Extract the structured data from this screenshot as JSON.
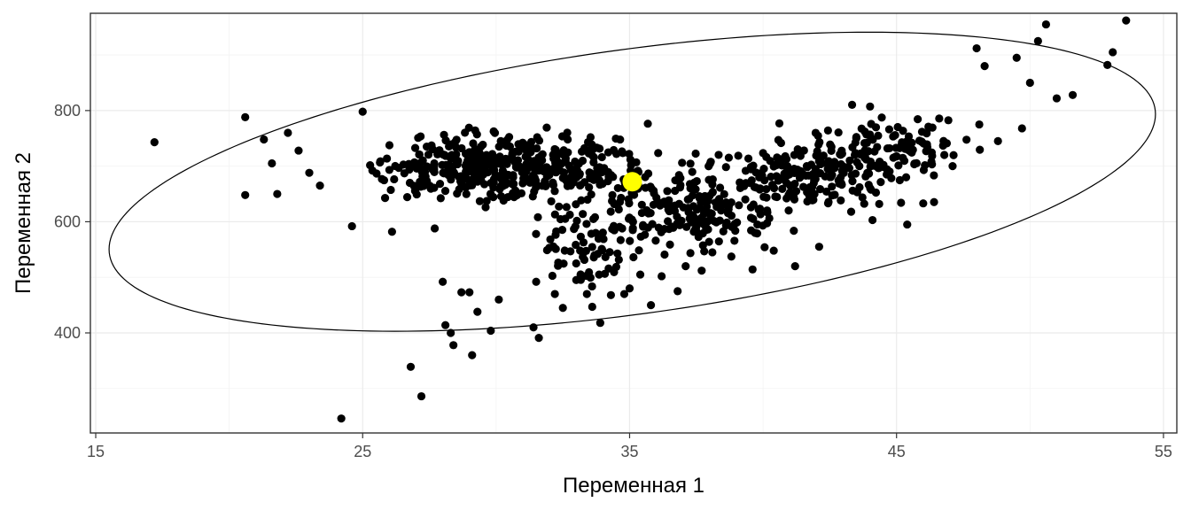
{
  "chart_data": {
    "type": "scatter",
    "title": "",
    "xlabel": "Переменная 1",
    "ylabel": "Переменная 2",
    "xlim": [
      14.8,
      55.5
    ],
    "ylim": [
      220,
      975
    ],
    "x_ticks": [
      15,
      25,
      35,
      45,
      55
    ],
    "y_ticks": [
      400,
      600,
      800
    ],
    "grid": true,
    "legend": "none",
    "colors": {
      "points": "#000000",
      "centroid": "#ffff00",
      "ellipse": "#000000",
      "panel_border": "#333333",
      "grid": "#ebebeb"
    },
    "centroid": {
      "x": 35.1,
      "y": 672
    },
    "ellipse": {
      "center_x": 35.1,
      "center_y": 672,
      "semi_major": 19.6,
      "semi_minor_y": 240,
      "tilt_slope": 6.2
    },
    "points": [
      [
        17.2,
        743
      ],
      [
        20.6,
        788
      ],
      [
        20.6,
        648
      ],
      [
        21.3,
        748
      ],
      [
        21.6,
        705
      ],
      [
        21.8,
        650
      ],
      [
        22.2,
        760
      ],
      [
        22.6,
        728
      ],
      [
        23.0,
        688
      ],
      [
        23.4,
        665
      ],
      [
        24.2,
        246
      ],
      [
        24.6,
        592
      ],
      [
        25.0,
        798
      ],
      [
        26.1,
        582
      ],
      [
        26.8,
        339
      ],
      [
        27.2,
        286
      ],
      [
        27.7,
        588
      ],
      [
        28.0,
        492
      ],
      [
        28.1,
        414
      ],
      [
        28.3,
        400
      ],
      [
        28.4,
        378
      ],
      [
        28.7,
        473
      ],
      [
        29.0,
        473
      ],
      [
        29.1,
        360
      ],
      [
        29.3,
        438
      ],
      [
        29.8,
        404
      ],
      [
        30.1,
        460
      ],
      [
        31.4,
        410
      ],
      [
        31.6,
        391
      ],
      [
        31.5,
        492
      ],
      [
        32.2,
        470
      ],
      [
        32.5,
        445
      ],
      [
        33.0,
        525
      ],
      [
        33.4,
        470
      ],
      [
        33.6,
        447
      ],
      [
        33.9,
        418
      ],
      [
        34.3,
        468
      ],
      [
        34.8,
        470
      ],
      [
        35.0,
        480
      ],
      [
        35.4,
        505
      ],
      [
        35.8,
        450
      ],
      [
        36.2,
        502
      ],
      [
        36.8,
        475
      ],
      [
        37.1,
        520
      ],
      [
        37.7,
        512
      ],
      [
        38.1,
        545
      ],
      [
        39.7,
        580
      ],
      [
        40.4,
        548
      ],
      [
        41.2,
        520
      ],
      [
        42.1,
        555
      ],
      [
        43.3,
        618
      ],
      [
        44.1,
        603
      ],
      [
        45.4,
        595
      ],
      [
        46.0,
        633
      ],
      [
        47.1,
        700
      ],
      [
        48.1,
        775
      ],
      [
        48.8,
        745
      ],
      [
        49.7,
        768
      ],
      [
        50.0,
        850
      ],
      [
        50.6,
        955
      ],
      [
        50.3,
        925
      ],
      [
        51.0,
        822
      ],
      [
        51.6,
        828
      ],
      [
        52.9,
        882
      ],
      [
        53.1,
        905
      ],
      [
        53.6,
        962
      ],
      [
        48.0,
        912
      ],
      [
        48.3,
        880
      ],
      [
        49.5,
        895
      ]
    ]
  }
}
